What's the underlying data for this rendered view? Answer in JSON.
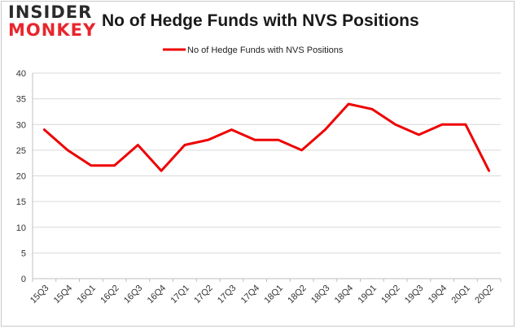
{
  "logo": {
    "line1": "INSIDER",
    "line2": "MONKEY"
  },
  "colors": {
    "series": "#ee0000",
    "grid": "#d9d9d9",
    "axis": "#bfbfbf",
    "brand_red": "#e8262d"
  },
  "chart_data": {
    "type": "line",
    "title": "No of Hedge Funds with NVS Positions",
    "xlabel": "",
    "ylabel": "",
    "ylim": [
      0,
      40
    ],
    "yticks": [
      0,
      5,
      10,
      15,
      20,
      25,
      30,
      35,
      40
    ],
    "grid": "horizontal",
    "legend": "top-center",
    "categories": [
      "15Q3",
      "15Q4",
      "16Q1",
      "16Q2",
      "16Q3",
      "16Q4",
      "17Q1",
      "17Q2",
      "17Q3",
      "17Q4",
      "18Q1",
      "18Q2",
      "18Q3",
      "18Q4",
      "19Q1",
      "19Q2",
      "19Q3",
      "19Q4",
      "20Q1",
      "20Q2"
    ],
    "series": [
      {
        "name": "No of Hedge Funds with NVS Positions",
        "values": [
          29,
          25,
          22,
          22,
          26,
          21,
          26,
          27,
          29,
          27,
          27,
          25,
          29,
          34,
          33,
          30,
          28,
          30,
          30,
          21
        ]
      }
    ]
  }
}
